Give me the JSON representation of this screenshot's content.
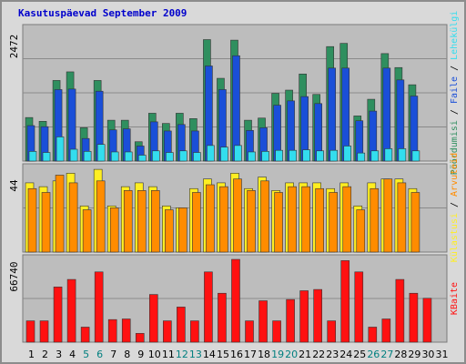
{
  "title": "Kasutuspäevad September 2009",
  "colors": {
    "pohi": "#2f8f5f",
    "failid": "#1a4fd8",
    "lehekulgi": "#33ddee",
    "kulastusi": "#ffee22",
    "arvuteid": "#ff8c00",
    "kbaite": "#ff1111",
    "weekend_label": "#007f7f",
    "weekday_label": "#000000"
  },
  "chart_data": {
    "type": "bar",
    "categories": [
      "1",
      "2",
      "3",
      "4",
      "5",
      "6",
      "7",
      "8",
      "9",
      "10",
      "11",
      "12",
      "13",
      "14",
      "15",
      "16",
      "17",
      "18",
      "19",
      "20",
      "21",
      "22",
      "23",
      "24",
      "25",
      "26",
      "27",
      "28",
      "29",
      "30",
      "31"
    ],
    "weekend_days": [
      "5",
      "6",
      "12",
      "13",
      "19",
      "20",
      "26",
      "27"
    ],
    "panels": [
      {
        "id": "top",
        "scale_label": "2472",
        "ylim": [
          0,
          2472
        ],
        "series": [
          {
            "name": "Pöördumisi",
            "key": "pohi",
            "values": [
              810,
              740,
              1500,
              1660,
              620,
              1500,
              760,
              760,
              360,
              890,
              700,
              890,
              790,
              2260,
              1540,
              2250,
              760,
              800,
              1260,
              1320,
              1620,
              1240,
              2130,
              2190,
              840,
              1150,
              2000,
              1740,
              1420,
              0,
              0
            ]
          },
          {
            "name": "Faile",
            "key": "failid",
            "values": [
              660,
              640,
              1330,
              1340,
              420,
              1300,
              580,
              600,
              280,
              730,
              560,
              680,
              560,
              1770,
              1330,
              1960,
              570,
              620,
              1040,
              1120,
              1200,
              1070,
              1730,
              1730,
              750,
              930,
              1730,
              1510,
              1210,
              0,
              0
            ]
          },
          {
            "name": "Lehekülgi",
            "key": "lehekulgi",
            "values": [
              180,
              160,
              450,
              220,
              180,
              310,
              170,
              170,
              110,
              190,
              160,
              190,
              160,
              290,
              260,
              290,
              170,
              180,
              200,
              200,
              210,
              190,
              200,
              280,
              150,
              190,
              230,
              230,
              190,
              0,
              0
            ]
          }
        ]
      },
      {
        "id": "middle",
        "scale_label": "44",
        "ylim": [
          0,
          44
        ],
        "series": [
          {
            "name": "Külastusi",
            "key": "kulastusi",
            "values": [
              36,
              34,
              37,
              41,
              24,
              43,
              24,
              34,
              36,
              34,
              24,
              23,
              33,
              38,
              36,
              41,
              33,
              39,
              32,
              36,
              36,
              36,
              33,
              36,
              24,
              36,
              38,
              38,
              33,
              0,
              0
            ]
          },
          {
            "name": "Arvuteid",
            "key": "arvuteid",
            "values": [
              33,
              31,
              40,
              36,
              22,
              37,
              23,
              32,
              32,
              32,
              22,
              23,
              31,
              35,
              34,
              38,
              32,
              37,
              31,
              34,
              34,
              33,
              31,
              34,
              22,
              33,
              38,
              36,
              31,
              0,
              0
            ]
          }
        ]
      },
      {
        "id": "bottom",
        "scale_label": "66740",
        "ylim": [
          0,
          66740
        ],
        "series": [
          {
            "name": "KBaite",
            "key": "kbaite",
            "values": [
              17000,
              17000,
              44000,
              50000,
              12000,
              56000,
              18000,
              18500,
              7000,
              38000,
              17000,
              28000,
              17000,
              56000,
              39000,
              66000,
              17000,
              33000,
              17000,
              34000,
              41000,
              42000,
              17000,
              65000,
              56000,
              12000,
              18500,
              50000,
              39000,
              35000,
              0
            ]
          }
        ]
      }
    ],
    "right_labels": {
      "top": [
        "Pöördumisi",
        "Faile",
        "Lehekülgi"
      ],
      "middle": [
        "Külastusi",
        "Arvuteid"
      ],
      "bottom": [
        "KBaite"
      ],
      "separator": " / "
    }
  }
}
